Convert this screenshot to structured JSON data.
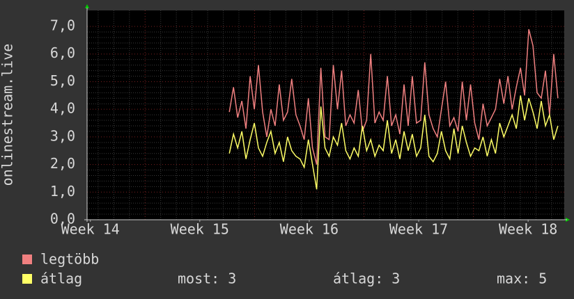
{
  "chart_data": {
    "type": "line",
    "ylabel": "onlinestream.live",
    "xlim": [
      13.97,
      18.33
    ],
    "ylim": [
      0,
      7.58
    ],
    "xticks": [
      {
        "value": 14,
        "label": "Week 14"
      },
      {
        "value": 15,
        "label": "Week 15"
      },
      {
        "value": 16,
        "label": "Week 16"
      },
      {
        "value": 17,
        "label": "Week 17"
      },
      {
        "value": 18,
        "label": "Week 18"
      }
    ],
    "yticks": [
      {
        "value": 0,
        "label": "0,0"
      },
      {
        "value": 1,
        "label": "1,0"
      },
      {
        "value": 2,
        "label": "2,0"
      },
      {
        "value": 3,
        "label": "3,0"
      },
      {
        "value": 4,
        "label": "4,0"
      },
      {
        "value": 5,
        "label": "5,0"
      },
      {
        "value": 6,
        "label": "6,0"
      },
      {
        "value": 7,
        "label": "7,0"
      }
    ],
    "grid": true,
    "x": [
      15.27,
      15.308,
      15.346,
      15.384,
      15.422,
      15.46,
      15.498,
      15.536,
      15.574,
      15.612,
      15.65,
      15.688,
      15.726,
      15.764,
      15.802,
      15.84,
      15.878,
      15.916,
      15.954,
      15.992,
      16.03,
      16.068,
      16.106,
      16.144,
      16.182,
      16.22,
      16.258,
      16.296,
      16.334,
      16.372,
      16.41,
      16.448,
      16.486,
      16.524,
      16.562,
      16.6,
      16.638,
      16.676,
      16.714,
      16.752,
      16.79,
      16.828,
      16.866,
      16.904,
      16.942,
      16.98,
      17.018,
      17.056,
      17.094,
      17.132,
      17.17,
      17.208,
      17.246,
      17.284,
      17.322,
      17.36,
      17.398,
      17.436,
      17.474,
      17.512,
      17.55,
      17.588,
      17.626,
      17.664,
      17.702,
      17.74,
      17.778,
      17.816,
      17.854,
      17.892,
      17.93,
      17.968,
      18.006,
      18.044,
      18.082,
      18.12,
      18.158,
      18.196,
      18.234,
      18.272
    ],
    "series": [
      {
        "name": "legtöbb",
        "color": "#f08080",
        "values": [
          3.9,
          4.8,
          3.7,
          4.3,
          3.3,
          5.2,
          4.0,
          5.6,
          3.9,
          3.0,
          4.0,
          3.4,
          4.9,
          3.6,
          3.9,
          5.1,
          3.8,
          3.4,
          2.9,
          4.4,
          2.6,
          2.0,
          5.5,
          3.0,
          2.9,
          5.6,
          4.0,
          5.4,
          3.4,
          3.8,
          3.5,
          4.7,
          3.2,
          3.6,
          6.0,
          3.5,
          3.9,
          3.6,
          5.2,
          3.4,
          3.8,
          3.1,
          4.9,
          3.4,
          5.2,
          3.5,
          3.6,
          5.7,
          3.8,
          3.3,
          3.0,
          4.0,
          5.0,
          3.4,
          3.7,
          3.2,
          5.0,
          3.6,
          4.9,
          3.5,
          2.9,
          4.2,
          3.4,
          3.7,
          4.0,
          5.1,
          4.2,
          5.2,
          4.0,
          4.8,
          5.5,
          4.5,
          6.9,
          6.3,
          4.6,
          4.4,
          5.4,
          3.8,
          6.0,
          4.4
        ]
      },
      {
        "name": "átlag",
        "color": "#ffff66",
        "values": [
          2.4,
          3.1,
          2.6,
          3.2,
          2.2,
          2.9,
          3.5,
          2.6,
          2.3,
          2.8,
          3.2,
          2.4,
          2.8,
          2.1,
          3.0,
          2.5,
          2.3,
          2.2,
          1.9,
          2.9,
          2.0,
          1.1,
          4.1,
          2.6,
          2.3,
          3.0,
          2.7,
          3.5,
          2.5,
          2.2,
          2.6,
          2.3,
          3.4,
          2.5,
          2.9,
          2.3,
          2.7,
          2.5,
          3.6,
          2.4,
          2.9,
          2.2,
          3.2,
          2.5,
          3.1,
          2.3,
          2.6,
          3.8,
          2.3,
          2.1,
          2.4,
          3.2,
          2.5,
          2.2,
          3.3,
          2.4,
          3.4,
          2.8,
          2.3,
          2.6,
          2.5,
          3.0,
          2.3,
          2.9,
          2.4,
          3.5,
          3.0,
          3.4,
          3.8,
          3.3,
          4.5,
          3.6,
          4.4,
          3.9,
          3.3,
          4.3,
          3.4,
          3.8,
          2.9,
          3.4
        ]
      }
    ],
    "stats": [
      "most: 3",
      "átlag: 3",
      "max: 5"
    ]
  }
}
